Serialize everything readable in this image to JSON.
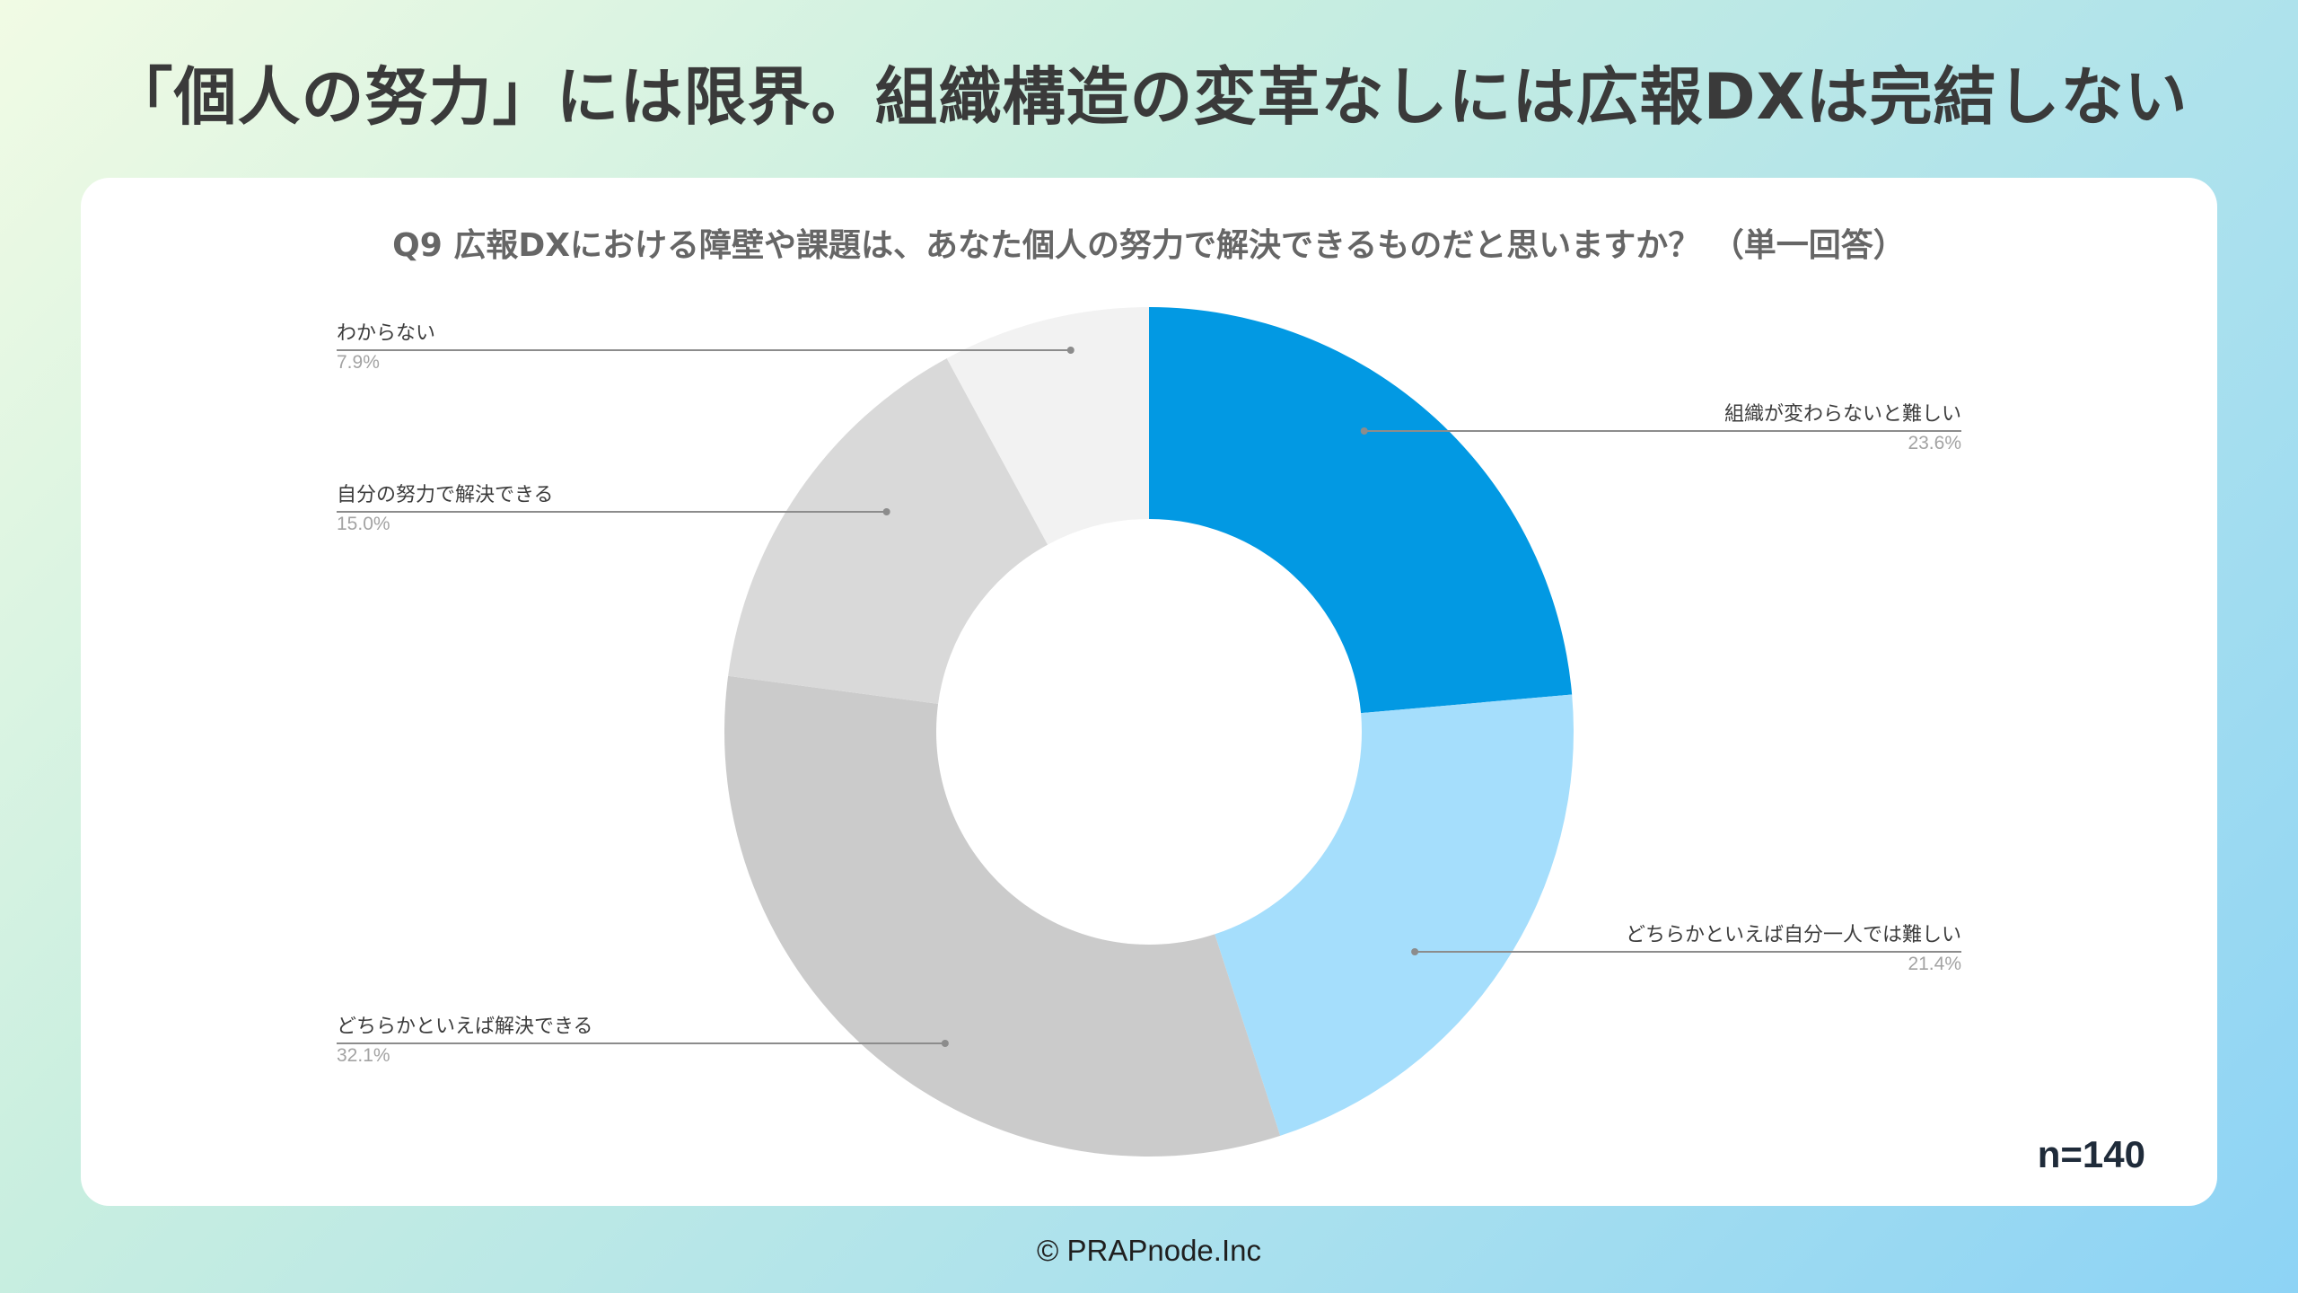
{
  "page": {
    "title": "「個人の努力」には限界。組織構造の変革なしには広報DXは完結しない",
    "copyright": "© PRAPnode.Inc"
  },
  "chart_data": {
    "type": "pie",
    "subtype": "donut",
    "title": "Q9 広報DXにおける障壁や課題は、あなた個人の努力で解決できるものだと思いますか？ （単一回答）",
    "sample_size": "n=140",
    "slices": [
      {
        "label": "組織が変わらないと難しい",
        "value": 23.6,
        "value_text": "23.6%",
        "color": "#0299e3",
        "label_side": "right"
      },
      {
        "label": "どちらかといえば自分一人では難しい",
        "value": 21.4,
        "value_text": "21.4%",
        "color": "#a5defc",
        "label_side": "right"
      },
      {
        "label": "どちらかといえば解決できる",
        "value": 32.1,
        "value_text": "32.1%",
        "color": "#cbcbcb",
        "label_side": "left"
      },
      {
        "label": "自分の努力で解決できる",
        "value": 15.0,
        "value_text": "15.0%",
        "color": "#d9d9d9",
        "label_side": "left"
      },
      {
        "label": "わからない",
        "value": 7.9,
        "value_text": "7.9%",
        "color": "#f2f2f2",
        "label_side": "left"
      }
    ],
    "start": "12 o'clock",
    "direction": "clockwise",
    "legend": "none"
  }
}
